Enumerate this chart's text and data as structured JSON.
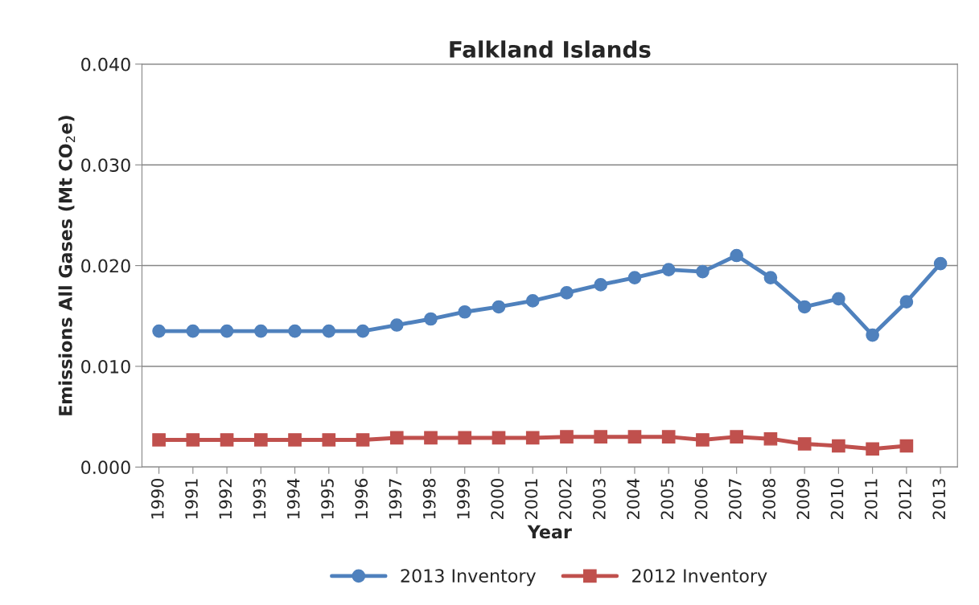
{
  "chart_data": {
    "type": "line",
    "title": "Falkland Islands",
    "xlabel": "Year",
    "ylabel": "Emissions All Gases (Mt CO$_{2}$e)",
    "categories": [
      "1990",
      "1991",
      "1992",
      "1993",
      "1994",
      "1995",
      "1996",
      "1997",
      "1998",
      "1999",
      "2000",
      "2001",
      "2002",
      "2003",
      "2004",
      "2005",
      "2006",
      "2007",
      "2008",
      "2009",
      "2010",
      "2011",
      "2012",
      "2013"
    ],
    "series": [
      {
        "name": "2013 Inventory",
        "color": "#4f81bd",
        "marker": "circle",
        "values": [
          0.0135,
          0.0135,
          0.0135,
          0.0135,
          0.0135,
          0.0135,
          0.0135,
          0.0141,
          0.0147,
          0.0154,
          0.0159,
          0.0165,
          0.0173,
          0.0181,
          0.0188,
          0.0196,
          0.0194,
          0.021,
          0.0188,
          0.0159,
          0.0167,
          0.0131,
          0.0164,
          0.0202
        ]
      },
      {
        "name": "2012 Inventory",
        "color": "#c0504d",
        "marker": "square",
        "values": [
          0.0027,
          0.0027,
          0.0027,
          0.0027,
          0.0027,
          0.0027,
          0.0027,
          0.0029,
          0.0029,
          0.0029,
          0.0029,
          0.0029,
          0.003,
          0.003,
          0.003,
          0.003,
          0.0027,
          0.003,
          0.0028,
          0.0023,
          0.0021,
          0.0018,
          0.0021,
          null
        ]
      }
    ],
    "ylim": [
      0,
      0.04
    ],
    "yticks": [
      {
        "value": 0,
        "label": "0.000"
      },
      {
        "value": 0.01,
        "label": "0.010"
      },
      {
        "value": 0.02,
        "label": "0.020"
      },
      {
        "value": 0.03,
        "label": "0.030"
      },
      {
        "value": 0.04,
        "label": "0.040"
      }
    ],
    "grid": "y",
    "legend": "bottom",
    "line_style": "solid"
  }
}
